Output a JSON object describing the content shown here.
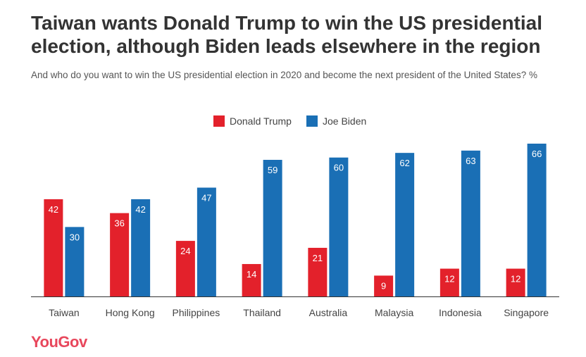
{
  "title": "Taiwan wants Donald Trump to win the US presidential election, although Biden leads elsewhere in the region",
  "subtitle": "And who do you want to win the US presidential election in 2020 and become the next president of the United States? %",
  "logo": "YouGov",
  "colors": {
    "trump": "#e3212b",
    "biden": "#1a6fb5",
    "logo": "#e8475c"
  },
  "chart_data": {
    "type": "bar",
    "categories": [
      "Taiwan",
      "Hong Kong",
      "Philippines",
      "Thailand",
      "Australia",
      "Malaysia",
      "Indonesia",
      "Singapore"
    ],
    "series": [
      {
        "name": "Donald Trump",
        "values": [
          42,
          36,
          24,
          14,
          21,
          9,
          12,
          12
        ]
      },
      {
        "name": "Joe Biden",
        "values": [
          30,
          42,
          47,
          59,
          60,
          62,
          63,
          66
        ]
      }
    ],
    "title": "",
    "xlabel": "",
    "ylabel": "",
    "ylim": [
      0,
      66
    ],
    "grid": false,
    "legend": "top-center"
  }
}
